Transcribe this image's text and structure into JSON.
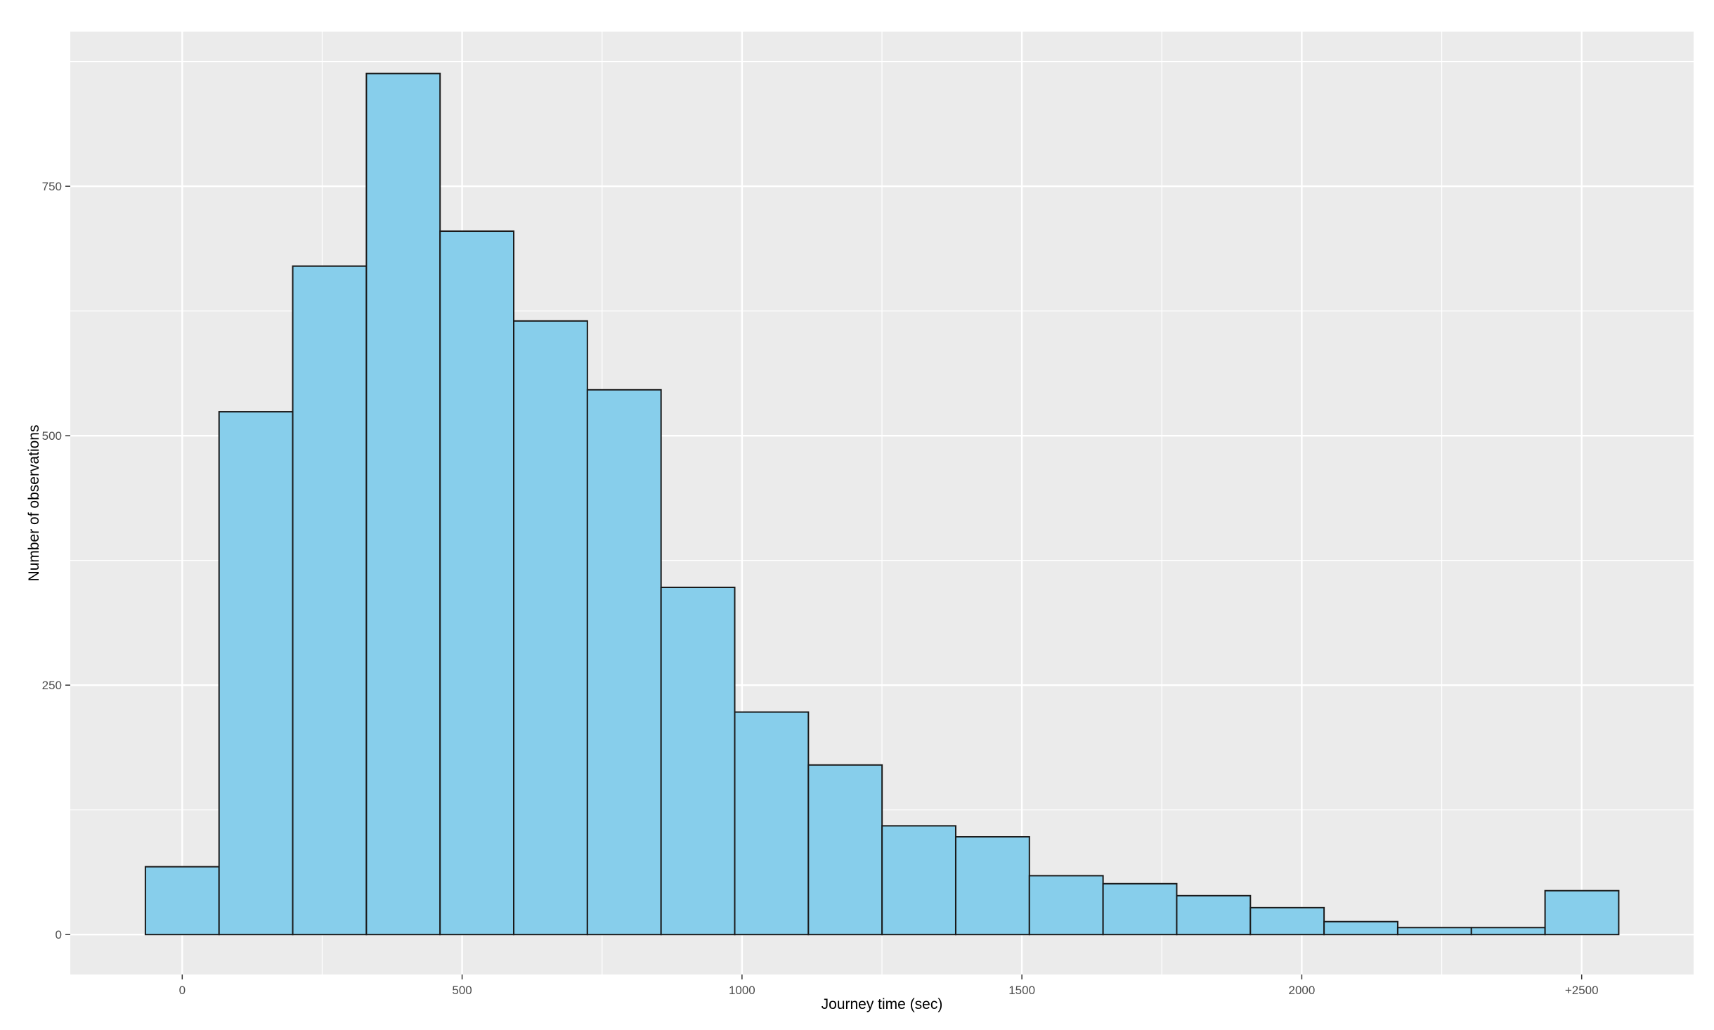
{
  "chart_data": {
    "type": "bar",
    "title": "",
    "xlabel": "Journey time (sec)",
    "ylabel": "Number of observations",
    "xlim": [
      -200,
      2700
    ],
    "ylim": [
      -40,
      905
    ],
    "x_ticks": [
      {
        "value": 0,
        "label": "0"
      },
      {
        "value": 500,
        "label": "500"
      },
      {
        "value": 1000,
        "label": "1000"
      },
      {
        "value": 1500,
        "label": "1500"
      },
      {
        "value": 2000,
        "label": "2000"
      },
      {
        "value": 2500,
        "label": "+2500"
      }
    ],
    "x_minor_ticks": [
      250,
      750,
      1250,
      1750,
      2250
    ],
    "y_ticks": [
      {
        "value": 0,
        "label": "0"
      },
      {
        "value": 250,
        "label": "250"
      },
      {
        "value": 500,
        "label": "500"
      },
      {
        "value": 750,
        "label": "750"
      }
    ],
    "y_minor_ticks": [
      125,
      375,
      625,
      875
    ],
    "bin_width": 131.6,
    "bin_centers": [
      0,
      131.6,
      263.2,
      394.8,
      526.4,
      658,
      789.6,
      921.2,
      1052.8,
      1184.4,
      1316,
      1447.6,
      1579.2,
      1710.8,
      1842.4,
      1974,
      2105.6,
      2237.2,
      2368.8,
      2500.4
    ],
    "values": [
      68,
      524,
      670,
      863,
      705,
      615,
      546,
      348,
      223,
      170,
      109,
      98,
      59,
      51,
      39,
      27,
      13,
      7,
      7,
      44
    ],
    "grid": true,
    "background": "#EBEBEB",
    "bar_fill": "#87CEEB",
    "bar_stroke": "#1A1A1A",
    "grid_color": "#FFFFFF",
    "legend": "none"
  }
}
